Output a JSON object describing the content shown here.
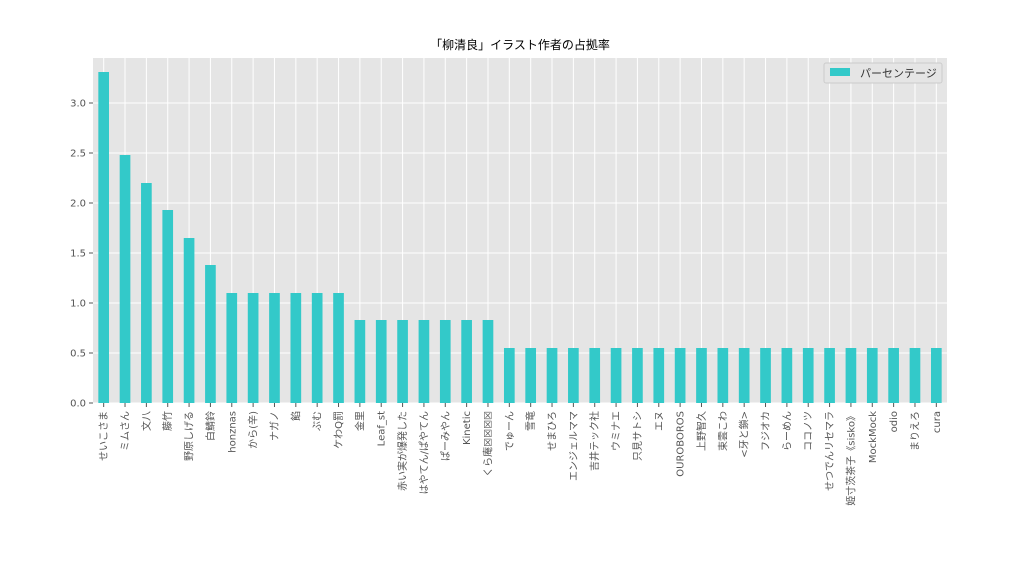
{
  "chart_data": {
    "type": "bar",
    "title": "「柳清良」イラスト作者の占拠率",
    "xlabel": "",
    "ylabel": "",
    "ylim": [
      0,
      3.45
    ],
    "yticks": [
      "0.0",
      "0.5",
      "1.0",
      "1.5",
      "2.0",
      "2.5",
      "3.0"
    ],
    "grid": true,
    "legend_position": "top-right",
    "bar_color": "#33c9c9",
    "background_color": "#e5e5e5",
    "categories": [
      "せいこさま",
      "ミムさん",
      "文八",
      "藤竹",
      "野原しげる",
      "白鯖鈴",
      "honznas",
      "から(辛)",
      "ナガノ",
      "餡",
      "ぶむ",
      "ケわQ罰",
      "金里",
      "Leaf_st",
      "赤い実が爆発した",
      "はやてん/ぱやてん",
      "ぱーみやん",
      "Kinetic",
      "くら庵☒☒☒☒",
      "でゅーん",
      "雪竜",
      "せまひろ",
      "エンジェルママ",
      "吉井テック社",
      "ウミナエ",
      "只見サトシ",
      "エヌ",
      "OUROBOROS",
      "上野智久",
      "束雲こわ",
      "<牙と鎖>",
      "フジオカ",
      "らーめん",
      "ココノツ",
      "せつでんリセマラ",
      "姫寸茨茶子《sisko》",
      "MockMock",
      "odio",
      "まりえろ",
      "cura"
    ],
    "series": [
      {
        "name": "パーセンテージ",
        "values": [
          3.31,
          2.48,
          2.2,
          1.93,
          1.65,
          1.38,
          1.1,
          1.1,
          1.1,
          1.1,
          1.1,
          1.1,
          0.83,
          0.83,
          0.83,
          0.83,
          0.83,
          0.83,
          0.83,
          0.55,
          0.55,
          0.55,
          0.55,
          0.55,
          0.55,
          0.55,
          0.55,
          0.55,
          0.55,
          0.55,
          0.55,
          0.55,
          0.55,
          0.55,
          0.55,
          0.55,
          0.55,
          0.55,
          0.55,
          0.55
        ]
      }
    ]
  }
}
